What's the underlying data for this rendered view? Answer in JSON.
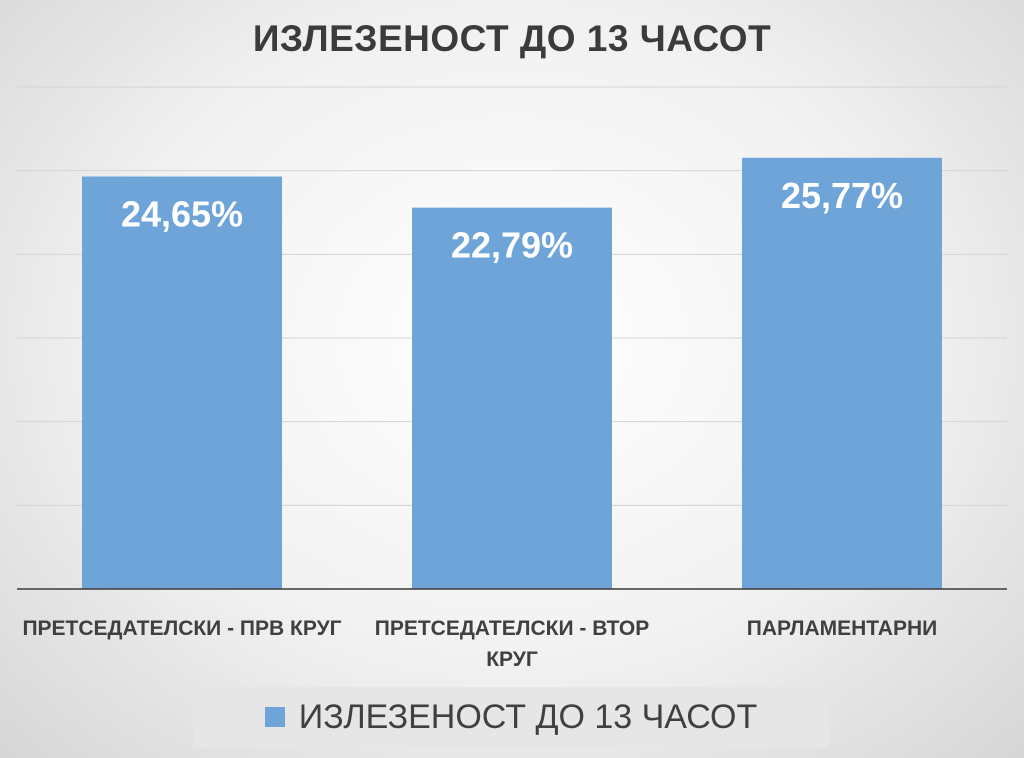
{
  "chart_data": {
    "type": "bar",
    "title": "ИЗЛЕЗЕНОСТ ДО 13 ЧАСОТ",
    "categories": [
      "ПРЕТСЕДАТЕЛСКИ - ПРВ КРУГ",
      "ПРЕТСЕДАТЕЛСКИ - ВТОР КРУГ",
      "ПАРЛАМЕНТАРНИ"
    ],
    "series": [
      {
        "name": "ИЗЛЕЗЕНОСТ ДО 13 ЧАСОТ",
        "values": [
          24.65,
          22.79,
          25.77
        ],
        "data_labels": [
          "24,65%",
          "22,79%",
          "25,77%"
        ]
      }
    ],
    "ylim": [
      0,
      30
    ],
    "grid": true,
    "legend": "bottom",
    "colors": {
      "bar": "#6ea4d8",
      "grid": "#d4d4d4",
      "axis": "#3a3a3a"
    }
  }
}
